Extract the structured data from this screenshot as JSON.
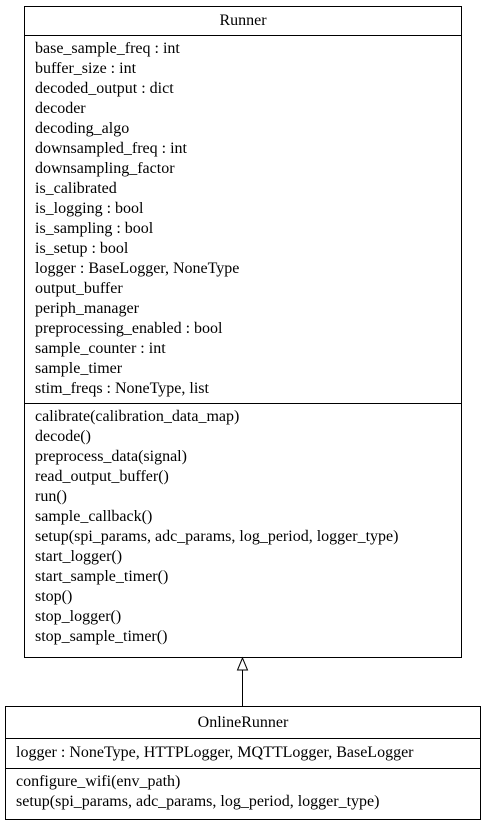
{
  "runner": {
    "name": "Runner",
    "attributes": [
      "base_sample_freq : int",
      "buffer_size : int",
      "decoded_output : dict",
      "decoder",
      "decoding_algo",
      "downsampled_freq : int",
      "downsampling_factor",
      "is_calibrated",
      "is_logging : bool",
      "is_sampling : bool",
      "is_setup : bool",
      "logger : BaseLogger, NoneType",
      "output_buffer",
      "periph_manager",
      "preprocessing_enabled : bool",
      "sample_counter : int",
      "sample_timer",
      "stim_freqs : NoneType, list"
    ],
    "methods": [
      "calibrate(calibration_data_map)",
      "decode()",
      "preprocess_data(signal)",
      "read_output_buffer()",
      "run()",
      "sample_callback()",
      "setup(spi_params, adc_params, log_period, logger_type)",
      "start_logger()",
      "start_sample_timer()",
      "stop()",
      "stop_logger()",
      "stop_sample_timer()"
    ]
  },
  "online_runner": {
    "name": "OnlineRunner",
    "attributes": [
      "logger : NoneType, HTTPLogger, MQTTLogger, BaseLogger"
    ],
    "methods": [
      "configure_wifi(env_path)",
      "setup(spi_params, adc_params, log_period, logger_type)"
    ]
  }
}
